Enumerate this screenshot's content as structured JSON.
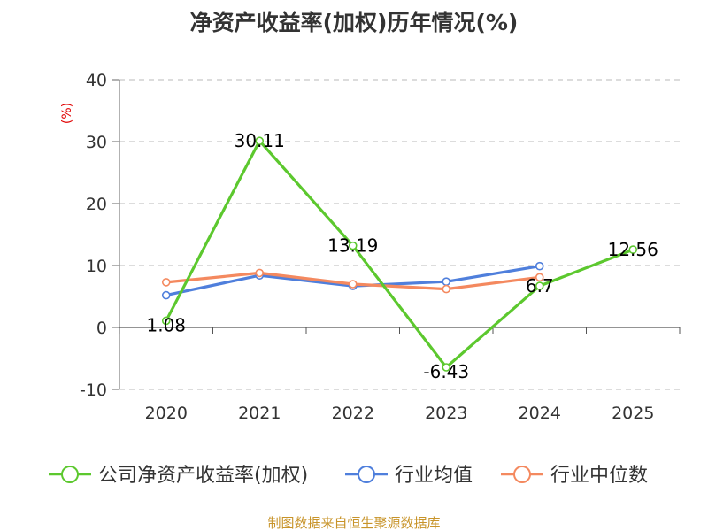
{
  "chart_data": {
    "type": "line",
    "title": "净资产收益率(加权)历年情况(%)",
    "unit_label": "(%)",
    "categories": [
      "2020",
      "2021",
      "2022",
      "2023",
      "2024",
      "2025"
    ],
    "ylim": [
      -10,
      40
    ],
    "yticks": [
      40,
      30,
      20,
      10,
      0,
      -10
    ],
    "grid": "dashed-horizontal",
    "legend_position": "bottom",
    "series": [
      {
        "name": "公司净资产收益率(加权)",
        "color": "#5cc82e",
        "values": [
          1.08,
          30.11,
          13.19,
          -6.43,
          6.7,
          12.56
        ],
        "labels": [
          "1.08",
          "30.11",
          "13.19",
          "-6.43",
          "6.7",
          "12.56"
        ]
      },
      {
        "name": "行业均值",
        "color": "#4f7fdc",
        "values": [
          5.2,
          8.4,
          6.7,
          7.4,
          9.9,
          null
        ]
      },
      {
        "name": "行业中位数",
        "color": "#f4895f",
        "values": [
          7.3,
          8.8,
          7.0,
          6.2,
          8.1,
          null
        ]
      }
    ],
    "source": "制图数据来自恒生聚源数据库"
  }
}
